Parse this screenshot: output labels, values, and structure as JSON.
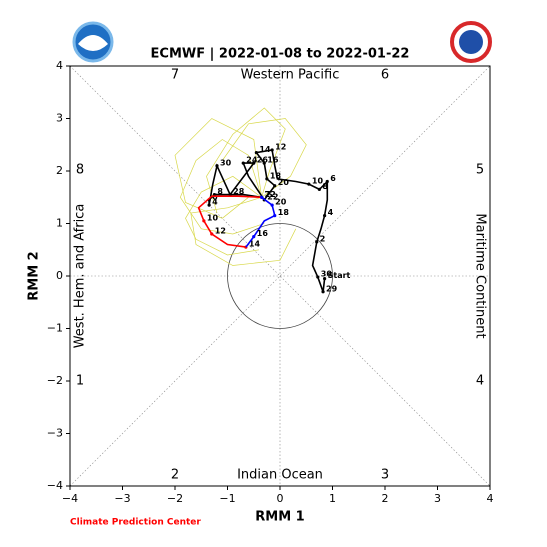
{
  "chart_data": {
    "type": "line",
    "title": "ECMWF | 2022-01-08 to 2022-01-22",
    "xlabel": "RMM 1",
    "ylabel": "RMM 2",
    "xlim": [
      -4,
      4
    ],
    "ylim": [
      -4,
      4
    ],
    "xticks": [
      {
        "value": -4,
        "label": "−4"
      },
      {
        "value": -3,
        "label": "−3"
      },
      {
        "value": -2,
        "label": "−2"
      },
      {
        "value": -1,
        "label": "−1"
      },
      0,
      1,
      2,
      3,
      4
    ],
    "yticks": [
      {
        "value": -4,
        "label": "−4"
      },
      {
        "value": -3,
        "label": "−3"
      },
      {
        "value": -2,
        "label": "−2"
      },
      {
        "value": -1,
        "label": "−1"
      },
      0,
      1,
      2,
      3,
      4
    ],
    "annotations": [
      "7",
      "Western Pacific",
      "6",
      "8",
      "5",
      "1",
      "4",
      "2",
      "Indian Ocean",
      "3",
      "West. Hem. and Africa",
      "Maritime Continent"
    ],
    "footer": "Climate Prediction Center",
    "series": [
      {
        "color": "#d8d84a",
        "x": [
          -0.35,
          -0.9,
          -1.5,
          -1.8,
          -1.6,
          -1.0,
          -0.4
        ],
        "y": [
          1.5,
          1.9,
          1.6,
          1.1,
          0.7,
          0.4,
          0.5
        ],
        "point_labels": [
          null,
          null,
          null,
          null,
          null,
          null,
          null
        ]
      },
      {
        "color": "#d8d84a",
        "x": [
          -0.35,
          -0.6,
          -1.1,
          -1.6,
          -1.9,
          -1.5,
          -0.9,
          -0.3
        ],
        "y": [
          1.5,
          2.3,
          2.6,
          2.2,
          1.5,
          0.9,
          0.8,
          1.0
        ],
        "point_labels": [
          null,
          null,
          null,
          null,
          null,
          null,
          null,
          null
        ]
      },
      {
        "color": "#d8d84a",
        "x": [
          -0.35,
          -0.2,
          0.1,
          -0.3,
          -0.9,
          -1.4,
          -1.2
        ],
        "y": [
          1.5,
          2.0,
          2.8,
          3.2,
          2.7,
          1.9,
          1.2
        ],
        "point_labels": [
          null,
          null,
          null,
          null,
          null,
          null,
          null
        ]
      },
      {
        "color": "#d8d84a",
        "x": [
          -0.35,
          -1.0,
          -1.7,
          -1.6,
          -0.9,
          0.0,
          0.3
        ],
        "y": [
          1.5,
          1.3,
          1.2,
          0.6,
          0.2,
          0.3,
          0.9
        ],
        "point_labels": [
          null,
          null,
          null,
          null,
          null,
          null,
          null
        ]
      },
      {
        "color": "#d8d84a",
        "x": [
          -0.35,
          -0.5,
          -1.3,
          -2.0,
          -1.8,
          -1.1,
          -0.6
        ],
        "y": [
          1.5,
          2.6,
          3.0,
          2.3,
          1.4,
          1.1,
          1.5
        ],
        "point_labels": [
          null,
          null,
          null,
          null,
          null,
          null,
          null
        ]
      },
      {
        "color": "#d8d84a",
        "x": [
          -0.35,
          0.2,
          0.5,
          0.1,
          -0.6,
          -1.1
        ],
        "y": [
          1.5,
          1.9,
          2.5,
          3.0,
          2.9,
          2.2
        ],
        "point_labels": [
          null,
          null,
          null,
          null,
          null,
          null
        ]
      },
      {
        "color": "#000000",
        "x": [
          0.85,
          0.82,
          0.72,
          0.62,
          0.7,
          0.78,
          0.85,
          0.9,
          0.9,
          0.75,
          0.55,
          0.3,
          -0.05,
          -0.1,
          -0.15,
          -0.45,
          -0.3,
          -0.25,
          -0.1,
          -0.3,
          -0.6,
          -0.7,
          -0.5,
          -0.95,
          -1.2,
          -1.28,
          -1.35,
          -1.35,
          -1.25,
          -0.7,
          -0.35
        ],
        "y": [
          -0.05,
          -0.3,
          -0.02,
          0.2,
          0.65,
          0.9,
          1.15,
          1.45,
          1.8,
          1.65,
          1.75,
          1.8,
          1.85,
          2.1,
          2.4,
          2.35,
          2.15,
          1.85,
          1.72,
          1.45,
          1.9,
          2.15,
          2.15,
          1.55,
          2.1,
          1.75,
          1.35,
          1.45,
          1.55,
          1.55,
          1.5
        ],
        "point_labels": [
          "Start",
          "29",
          "30",
          null,
          "2",
          null,
          "4",
          null,
          "6",
          "8",
          "10",
          null,
          null,
          null,
          "12",
          "14",
          "16",
          "18",
          "20",
          "22",
          null,
          "24",
          "26",
          "28",
          "30",
          null,
          "4",
          "6",
          "8",
          null,
          "7"
        ]
      },
      {
        "color": "#ff0000",
        "x": [
          -0.35,
          -0.8,
          -1.3,
          -1.55,
          -1.45,
          -1.3,
          -1.0,
          -0.65
        ],
        "y": [
          1.5,
          1.52,
          1.52,
          1.3,
          1.05,
          0.8,
          0.6,
          0.55
        ],
        "point_labels": [
          null,
          null,
          null,
          null,
          "10",
          "12",
          null,
          "14"
        ]
      },
      {
        "color": "#0000ff",
        "x": [
          -0.65,
          -0.5,
          -0.3,
          -0.1,
          -0.15,
          -0.35
        ],
        "y": [
          0.55,
          0.75,
          1.05,
          1.15,
          1.35,
          1.5
        ],
        "point_labels": [
          null,
          "16",
          null,
          "18",
          "20",
          "22"
        ]
      }
    ]
  }
}
